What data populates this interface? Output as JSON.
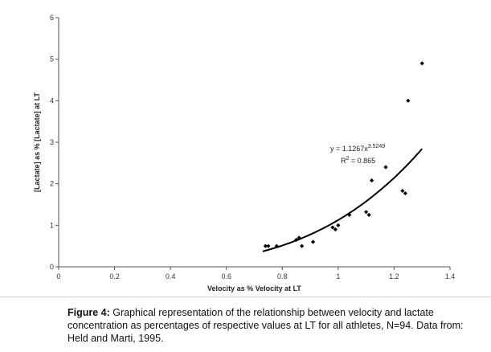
{
  "chart_data": {
    "type": "scatter",
    "xlabel": "Velocity as % Velocity at LT",
    "ylabel": "[Lactate] as % [Lactate] at LT",
    "xlim": [
      0,
      1.4
    ],
    "ylim": [
      0,
      6
    ],
    "x_ticks": [
      "0",
      "0.2",
      "0.4",
      "0.6",
      "0.8",
      "1",
      "1.2",
      "1.4"
    ],
    "y_ticks": [
      "0",
      "1",
      "2",
      "3",
      "4",
      "5",
      "6"
    ],
    "grid": false,
    "marker_color": "#000000",
    "points": [
      {
        "x": 0.74,
        "y": 0.5
      },
      {
        "x": 0.75,
        "y": 0.5
      },
      {
        "x": 0.78,
        "y": 0.5
      },
      {
        "x": 0.85,
        "y": 0.65
      },
      {
        "x": 0.86,
        "y": 0.7
      },
      {
        "x": 0.87,
        "y": 0.5
      },
      {
        "x": 0.91,
        "y": 0.6
      },
      {
        "x": 0.98,
        "y": 0.95
      },
      {
        "x": 0.99,
        "y": 0.9
      },
      {
        "x": 1.0,
        "y": 1.0
      },
      {
        "x": 1.04,
        "y": 1.25
      },
      {
        "x": 1.1,
        "y": 1.32
      },
      {
        "x": 1.11,
        "y": 1.25
      },
      {
        "x": 1.12,
        "y": 2.08
      },
      {
        "x": 1.17,
        "y": 2.4
      },
      {
        "x": 1.23,
        "y": 1.83
      },
      {
        "x": 1.24,
        "y": 1.77
      },
      {
        "x": 1.25,
        "y": 4.0
      },
      {
        "x": 1.3,
        "y": 4.9
      }
    ],
    "trendline": {
      "type": "power",
      "coefficient": 1.1267,
      "exponent": 3.5249,
      "x_range": [
        0.73,
        1.3
      ],
      "equation_prefix": "y = 1.1267x",
      "equation_exponent": "3.5249",
      "r2_prefix": "R",
      "r2_sup": "2",
      "r2_suffix": " = 0.865"
    }
  },
  "caption": {
    "label": "Figure 4:",
    "text": " Graphical representation of the relationship between velocity and lactate concentration as percentages of respective values at LT for all athletes, N=94. Data from: Held and Marti, 1995."
  }
}
